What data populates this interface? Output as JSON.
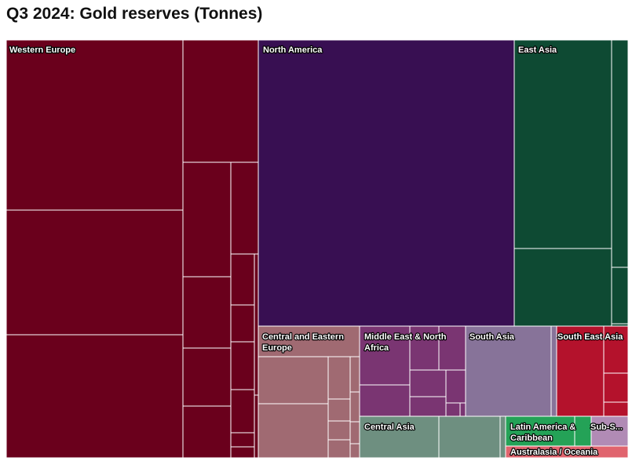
{
  "title": "Q3 2024: Gold reserves (Tonnes)",
  "chart_data": {
    "type": "treemap",
    "title": "Q3 2024: Gold reserves (Tonnes)",
    "unit": "Tonnes",
    "groups": [
      {
        "name": "Western Europe",
        "label_lines": [
          "Western Europe"
        ],
        "color": "#6a001c",
        "total": 12940
      },
      {
        "name": "North America",
        "label_lines": [
          "North America"
        ],
        "color": "#380f52",
        "total": 8560
      },
      {
        "name": "East Asia",
        "label_lines": [
          "East Asia"
        ],
        "color": "#0e4a33",
        "total": 3400
      },
      {
        "name": "Central and Eastern Europe",
        "label_lines": [
          "Central and Eastern",
          "Europe"
        ],
        "color": "#a06a72",
        "total": 1700
      },
      {
        "name": "Middle East & North Africa",
        "label_lines": [
          "Middle East & North",
          "Africa"
        ],
        "color": "#7a3572",
        "total": 1500
      },
      {
        "name": "South Asia",
        "label_lines": [
          "South Asia"
        ],
        "color": "#877399",
        "total": 1200
      },
      {
        "name": "South East Asia",
        "label_lines": [
          "South East Asia"
        ],
        "color": "#b4122c",
        "total": 1000
      },
      {
        "name": "Central Asia",
        "label_lines": [
          "Central Asia"
        ],
        "color": "#6e8f80",
        "total": 700
      },
      {
        "name": "Latin America & Caribbean",
        "label_lines": [
          "Latin America &",
          "Caribbean"
        ],
        "color": "#24a257",
        "total": 450
      },
      {
        "name": "Sub-Saharan Africa",
        "label_lines": [
          "Sub-S..."
        ],
        "color": "#b18bb5",
        "total": 170
      },
      {
        "name": "Australasia / Oceania",
        "label_lines": [
          "Australasia / Oceania"
        ],
        "color": "#e0646e",
        "total": 80
      }
    ]
  }
}
